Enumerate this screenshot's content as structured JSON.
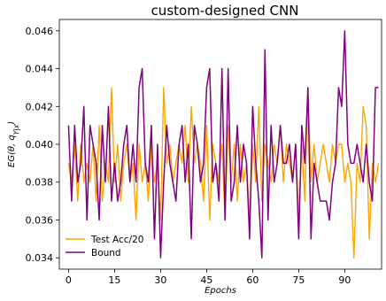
{
  "chart_data": {
    "type": "line",
    "title": "custom-designed CNN",
    "xlabel": "Epochs",
    "ylabel": "EG(θ, q_{Y|x})",
    "xlim": [
      -3,
      102
    ],
    "ylim": [
      0.0334,
      0.0466
    ],
    "xticks": [
      0,
      15,
      30,
      45,
      60,
      75,
      90
    ],
    "yticks": [
      0.034,
      0.036,
      0.038,
      0.04,
      0.042,
      0.044,
      0.046
    ],
    "ytick_labels": [
      "0.034",
      "0.036",
      "0.038",
      "0.040",
      "0.042",
      "0.044",
      "0.046"
    ],
    "grid": false,
    "legend_position": "lower-left",
    "x_start": 0,
    "series": [
      {
        "name": "Test Acc/20",
        "color": "#FFA500",
        "values": [
          0.039,
          0.038,
          0.04,
          0.037,
          0.04,
          0.038,
          0.039,
          0.038,
          0.04,
          0.037,
          0.041,
          0.037,
          0.039,
          0.038,
          0.043,
          0.038,
          0.04,
          0.037,
          0.039,
          0.04,
          0.038,
          0.039,
          0.036,
          0.04,
          0.038,
          0.039,
          0.037,
          0.04,
          0.038,
          0.039,
          0.036,
          0.043,
          0.039,
          0.04,
          0.038,
          0.039,
          0.04,
          0.039,
          0.041,
          0.038,
          0.042,
          0.039,
          0.04,
          0.039,
          0.037,
          0.041,
          0.036,
          0.04,
          0.039,
          0.038,
          0.04,
          0.036,
          0.041,
          0.038,
          0.04,
          0.037,
          0.04,
          0.038,
          0.039,
          0.036,
          0.04,
          0.038,
          0.042,
          0.037,
          0.04,
          0.039,
          0.038,
          0.04,
          0.039,
          0.041,
          0.038,
          0.04,
          0.039,
          0.038,
          0.04,
          0.036,
          0.04,
          0.037,
          0.043,
          0.038,
          0.04,
          0.038,
          0.039,
          0.04,
          0.039,
          0.038,
          0.04,
          0.039,
          0.04,
          0.04,
          0.038,
          0.039,
          0.038,
          0.034,
          0.039,
          0.038,
          0.042,
          0.041,
          0.035,
          0.039,
          0.038,
          0.039
        ]
      },
      {
        "name": "Bound",
        "color": "#800080",
        "values": [
          0.041,
          0.037,
          0.041,
          0.038,
          0.039,
          0.042,
          0.036,
          0.041,
          0.04,
          0.039,
          0.036,
          0.041,
          0.038,
          0.042,
          0.037,
          0.039,
          0.037,
          0.038,
          0.04,
          0.041,
          0.038,
          0.04,
          0.038,
          0.043,
          0.044,
          0.039,
          0.038,
          0.041,
          0.035,
          0.04,
          0.034,
          0.038,
          0.041,
          0.039,
          0.038,
          0.037,
          0.04,
          0.041,
          0.038,
          0.04,
          0.035,
          0.041,
          0.04,
          0.038,
          0.039,
          0.043,
          0.044,
          0.038,
          0.039,
          0.037,
          0.044,
          0.036,
          0.044,
          0.037,
          0.038,
          0.041,
          0.038,
          0.04,
          0.039,
          0.035,
          0.042,
          0.039,
          0.037,
          0.034,
          0.045,
          0.036,
          0.041,
          0.038,
          0.039,
          0.041,
          0.039,
          0.039,
          0.04,
          0.038,
          0.04,
          0.035,
          0.041,
          0.039,
          0.043,
          0.035,
          0.039,
          0.038,
          0.037,
          0.037,
          0.037,
          0.036,
          0.038,
          0.039,
          0.043,
          0.042,
          0.046,
          0.04,
          0.039,
          0.039,
          0.04,
          0.039,
          0.038,
          0.04,
          0.038,
          0.037,
          0.043,
          0.043
        ]
      }
    ]
  }
}
